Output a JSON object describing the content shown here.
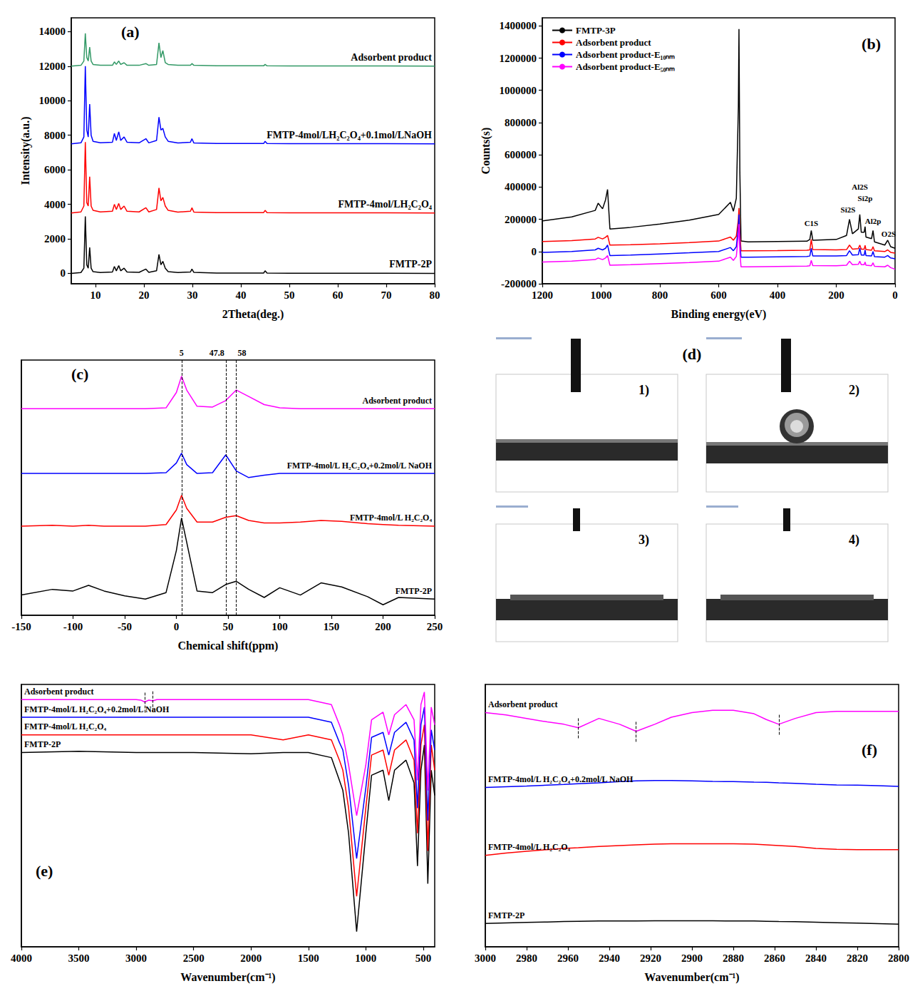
{
  "chart_data": [
    {
      "type": "line",
      "title": "(a)",
      "xlabel": "2Theta(deg.)",
      "ylabel": "Intensity(a.u.)",
      "xlim": [
        5,
        80
      ],
      "xticks": [
        10,
        20,
        30,
        40,
        50,
        60,
        70,
        80
      ],
      "ylim": [
        -600,
        14800
      ],
      "yticks": [
        0,
        2000,
        4000,
        6000,
        8000,
        10000,
        12000,
        14000
      ],
      "x": [
        5,
        7,
        7.6,
        7.9,
        8.2,
        8.5,
        8.8,
        9.1,
        9.5,
        11,
        13.5,
        13.9,
        14.3,
        14.8,
        15.2,
        15.9,
        16.5,
        19,
        20.4,
        21,
        22.6,
        23.1,
        23.5,
        23.9,
        24.4,
        25,
        27,
        29.6,
        29.9,
        30.3,
        35,
        40,
        44.7,
        45,
        45.4,
        50,
        60,
        70,
        80
      ],
      "series": [
        {
          "name": "FMTP-2P",
          "color": "#000000",
          "values": [
            0,
            50,
            300,
            3300,
            500,
            300,
            1500,
            300,
            100,
            50,
            80,
            400,
            150,
            450,
            150,
            300,
            80,
            60,
            250,
            60,
            150,
            1100,
            500,
            700,
            300,
            100,
            50,
            80,
            250,
            60,
            20,
            20,
            20,
            150,
            20,
            10,
            10,
            10,
            0
          ]
        },
        {
          "name": "FMTP-4mol/LH₂C₂O₄",
          "color": "#ff0000",
          "values": [
            3500,
            3560,
            3900,
            7600,
            4100,
            3900,
            5600,
            3900,
            3650,
            3560,
            3600,
            4000,
            3700,
            4050,
            3700,
            3900,
            3600,
            3560,
            3800,
            3560,
            3700,
            4950,
            4200,
            4400,
            3900,
            3650,
            3550,
            3600,
            3800,
            3550,
            3520,
            3520,
            3520,
            3650,
            3520,
            3510,
            3510,
            3510,
            3500
          ]
        },
        {
          "name": "FMTP-4mol/LH₂C₂O₄+0.1mol/LNaOH",
          "color": "#0000ff",
          "values": [
            7500,
            7560,
            7900,
            12000,
            8300,
            7900,
            9800,
            8000,
            7650,
            7560,
            7600,
            8100,
            7700,
            8200,
            7700,
            7900,
            7600,
            7560,
            7800,
            7560,
            7700,
            9050,
            8300,
            8400,
            7900,
            7650,
            7550,
            7600,
            7800,
            7550,
            7520,
            7520,
            7520,
            7650,
            7520,
            7510,
            7510,
            7510,
            7500
          ]
        },
        {
          "name": "Adsorbent product",
          "color": "#339966",
          "values": [
            12000,
            12050,
            12300,
            13900,
            12500,
            12300,
            13100,
            12300,
            12100,
            12050,
            12050,
            12250,
            12100,
            12300,
            12100,
            12200,
            12050,
            12050,
            12150,
            12050,
            12100,
            13350,
            12500,
            12900,
            12200,
            12100,
            12050,
            12050,
            12150,
            12050,
            12020,
            12020,
            12020,
            12100,
            12020,
            12010,
            12010,
            12010,
            12000
          ]
        }
      ]
    },
    {
      "type": "line",
      "title": "(b)",
      "xlabel": "Binding energy(eV)",
      "ylabel": "Counts(s)",
      "xlim": [
        1200,
        0
      ],
      "xticks": [
        1200,
        1000,
        800,
        600,
        400,
        200,
        0
      ],
      "ylim": [
        -200000,
        1450000
      ],
      "yticks": [
        -200000,
        0,
        200000,
        400000,
        600000,
        800000,
        1000000,
        1200000,
        1400000
      ],
      "legend": "upper left",
      "x": [
        1200,
        1100,
        1020,
        1010,
        995,
        985,
        978,
        970,
        900,
        800,
        700,
        600,
        560,
        550,
        540,
        533,
        531,
        528,
        524,
        500,
        400,
        300,
        290,
        285,
        280,
        200,
        165,
        155,
        145,
        125,
        120,
        115,
        105,
        102,
        99,
        80,
        75,
        70,
        35,
        25,
        15,
        0
      ],
      "series": [
        {
          "name": "FMTP-3P",
          "color": "#000000",
          "values": [
            190000,
            215000,
            255000,
            300000,
            265000,
            320000,
            385000,
            140000,
            150000,
            170000,
            195000,
            230000,
            305000,
            250000,
            330000,
            900000,
            1380000,
            500000,
            65000,
            60000,
            62000,
            64000,
            75000,
            130000,
            70000,
            75000,
            100000,
            200000,
            110000,
            140000,
            230000,
            120000,
            120000,
            155000,
            90000,
            80000,
            130000,
            60000,
            40000,
            70000,
            30000,
            20000
          ]
        },
        {
          "name": "Adsorbent product",
          "color": "#ff0000",
          "values": [
            62000,
            68000,
            78000,
            88000,
            78000,
            88000,
            100000,
            40000,
            42000,
            48000,
            55000,
            65000,
            90000,
            70000,
            95000,
            200000,
            270000,
            120000,
            5000,
            5000,
            6000,
            8000,
            10000,
            75000,
            12000,
            10000,
            12000,
            40000,
            15000,
            18000,
            40000,
            15000,
            15000,
            38000,
            12000,
            8000,
            30000,
            5000,
            0,
            10000,
            -5000,
            -10000
          ]
        },
        {
          "name": "Adsorbent product-E₁₀ₙₘ",
          "color": "#0000ff",
          "values": [
            -5000,
            0,
            10000,
            20000,
            10000,
            20000,
            40000,
            -25000,
            -22000,
            -15000,
            -8000,
            0,
            25000,
            5000,
            30000,
            160000,
            230000,
            60000,
            -35000,
            -35000,
            -33000,
            -31000,
            -28000,
            20000,
            -27000,
            -28000,
            -25000,
            5000,
            -22000,
            -20000,
            20000,
            -22000,
            -22000,
            10000,
            -25000,
            -28000,
            0,
            -32000,
            -35000,
            -25000,
            -40000,
            -45000
          ]
        },
        {
          "name": "Adsorbent product-E₅₀ₙₘ",
          "color": "#ff00ff",
          "values": [
            -65000,
            -60000,
            -50000,
            -40000,
            -50000,
            -40000,
            -25000,
            -85000,
            -82000,
            -75000,
            -68000,
            -60000,
            -35000,
            -55000,
            -30000,
            100000,
            170000,
            0,
            -95000,
            -95000,
            -93000,
            -91000,
            -88000,
            -55000,
            -87000,
            -88000,
            -85000,
            -60000,
            -82000,
            -80000,
            -60000,
            -82000,
            -82000,
            -65000,
            -85000,
            -88000,
            -70000,
            -92000,
            -95000,
            -85000,
            -100000,
            -110000
          ]
        }
      ],
      "annotations": [
        {
          "text": "C1S",
          "x": 285,
          "y": 175000
        },
        {
          "text": "Si2S",
          "x": 160,
          "y": 260000
        },
        {
          "text": "Al2S",
          "x": 120,
          "y": 400000
        },
        {
          "text": "Si2p",
          "x": 102,
          "y": 330000
        },
        {
          "text": "Al2p",
          "x": 75,
          "y": 190000
        },
        {
          "text": "O2S",
          "x": 22,
          "y": 110000
        }
      ]
    },
    {
      "type": "line",
      "title": "(c)",
      "xlabel": "Chemical shift(ppm)",
      "xlim": [
        -150,
        250
      ],
      "xticks": [
        -150,
        -100,
        -50,
        0,
        50,
        100,
        150,
        200,
        250
      ],
      "ylim": [
        -20,
        295
      ],
      "tick_labels": "x",
      "x": [
        -150,
        -120,
        -100,
        -85,
        -70,
        -50,
        -30,
        -10,
        0,
        5,
        10,
        20,
        35,
        47.8,
        58,
        70,
        85,
        100,
        120,
        140,
        160,
        185,
        200,
        215,
        250
      ],
      "series": [
        {
          "name": "FMTP-2P",
          "color": "#000000",
          "values": [
            5,
            12,
            10,
            17,
            10,
            4,
            0,
            8,
            60,
            100,
            70,
            10,
            8,
            18,
            22,
            12,
            2,
            14,
            5,
            20,
            15,
            3,
            -7,
            2,
            0
          ]
        },
        {
          "name": "FMTP-4mol/L H₂C₂O₄",
          "color": "#ff0000",
          "values": [
            90,
            91,
            90,
            91,
            90,
            90,
            90,
            92,
            110,
            128,
            112,
            95,
            95,
            101,
            103,
            97,
            94,
            94,
            95,
            97,
            96,
            93,
            92,
            91,
            90
          ]
        },
        {
          "name": "FMTP-4mol/L H₂C₂O₄+0.2mol/L NaOH",
          "color": "#0000ff",
          "values": [
            155,
            155,
            155,
            155,
            155,
            155,
            155,
            156,
            168,
            180,
            166,
            155,
            156,
            178,
            158,
            150,
            153,
            155,
            155,
            155,
            155,
            155,
            155,
            155,
            155
          ]
        },
        {
          "name": "Adsorbent product",
          "color": "#ff00ff",
          "values": [
            235,
            235,
            235,
            235,
            235,
            235,
            235,
            236,
            255,
            275,
            258,
            238,
            237,
            245,
            258,
            250,
            240,
            236,
            235,
            235,
            235,
            235,
            235,
            235,
            235
          ]
        }
      ],
      "annotations": [
        {
          "text": "5",
          "x": 5
        },
        {
          "text": "47.8",
          "x": 47.8
        },
        {
          "text": "58",
          "x": 58
        }
      ]
    },
    {
      "type": "image",
      "title": "(d)",
      "labels": [
        "1)",
        "2)",
        "3)",
        "4)"
      ]
    },
    {
      "type": "line",
      "title": "(e)",
      "xlabel": "Wavenumber(cm⁻¹)",
      "xlim": [
        4000,
        400
      ],
      "xticks": [
        4000,
        3500,
        3000,
        2500,
        2000,
        1500,
        1000,
        500
      ],
      "ylim": [
        0,
        104
      ],
      "tick_labels": "x",
      "x": [
        4000,
        3500,
        3000,
        2960,
        2925,
        2890,
        2855,
        2820,
        2500,
        2000,
        1720,
        1500,
        1300,
        1230,
        1200,
        1150,
        1080,
        1000,
        950,
        850,
        800,
        750,
        650,
        580,
        550,
        520,
        490,
        460,
        430,
        400
      ],
      "series": [
        {
          "name": "FMTP-2P",
          "color": "#000000",
          "values": [
            77,
            77.5,
            77,
            77,
            77,
            77,
            77,
            77,
            77,
            76.5,
            77,
            77,
            75,
            66,
            62,
            45,
            6,
            45,
            68,
            70,
            58,
            70,
            74,
            65,
            32,
            70,
            80,
            25,
            70,
            60
          ]
        },
        {
          "name": "FMTP-4mol/L H₂C₂O₄",
          "color": "#ff0000",
          "values": [
            84,
            84,
            84,
            84,
            84,
            84,
            84,
            84,
            84,
            84,
            82,
            84,
            82,
            74,
            70,
            55,
            20,
            55,
            76,
            78,
            68,
            78,
            82,
            74,
            45,
            80,
            88,
            38,
            80,
            70
          ]
        },
        {
          "name": "FMTP-4mol/L H₂C₂O₄+0.2mol/L NaOH",
          "color": "#0000ff",
          "values": [
            91,
            91,
            91,
            91,
            91,
            91,
            91,
            91,
            91,
            91,
            91,
            91,
            89,
            81,
            78,
            64,
            35,
            63,
            83,
            85,
            76,
            85,
            89,
            82,
            55,
            88,
            95,
            50,
            86,
            78
          ]
        },
        {
          "name": "Adsorbent product",
          "color": "#ff00ff",
          "values": [
            98,
            98,
            98,
            97.8,
            97,
            97.8,
            97.5,
            98,
            98,
            98,
            98,
            98,
            96,
            88,
            84,
            72,
            52,
            72,
            90,
            93,
            84,
            92,
            96,
            90,
            66,
            96,
            101,
            62,
            95,
            88
          ]
        }
      ],
      "annotations": [
        {
          "x": 2925
        },
        {
          "x": 2855
        }
      ]
    },
    {
      "type": "line",
      "title": "(f)",
      "xlabel": "Wavenumber(cm⁻¹)",
      "xlim": [
        3000,
        2800
      ],
      "xticks": [
        3000,
        2980,
        2960,
        2940,
        2920,
        2900,
        2880,
        2860,
        2840,
        2820,
        2800
      ],
      "ylim": [
        0,
        112
      ],
      "tick_labels": "x",
      "x": [
        3000,
        2990,
        2980,
        2970,
        2962,
        2955,
        2945,
        2935,
        2927,
        2918,
        2910,
        2900,
        2890,
        2880,
        2870,
        2864,
        2858,
        2850,
        2840,
        2830,
        2820,
        2810,
        2800
      ],
      "series": [
        {
          "name": "FMTP-2P",
          "color": "#000000",
          "values": [
            10,
            10.2,
            10.4,
            10.6,
            10.8,
            10.9,
            11,
            11,
            11,
            11.1,
            11.1,
            11.1,
            11.1,
            11,
            11,
            10.9,
            10.8,
            10.7,
            10.5,
            10.3,
            10.1,
            9.9,
            9.7
          ]
        },
        {
          "name": "FMTP-4mol/L H₂C₂O₄",
          "color": "#ff0000",
          "values": [
            39,
            40,
            40.8,
            41.5,
            42,
            42.3,
            42.8,
            43.2,
            43.5,
            43.8,
            44,
            44,
            44,
            44,
            43.8,
            43.5,
            43.2,
            42.8,
            42,
            41.6,
            41.5,
            41.5,
            41.5
          ]
        },
        {
          "name": "FMTP-4mol/L H₂C₂O₄+0.2mol/L NaOH",
          "color": "#0000ff",
          "values": [
            68,
            68.3,
            68.6,
            69,
            69.3,
            69.6,
            70,
            70.5,
            70.8,
            71,
            71,
            70.8,
            70.6,
            70.5,
            70.3,
            70.2,
            70,
            69.8,
            69.4,
            69.1,
            69,
            68.8,
            68.5
          ]
        },
        {
          "name": "Adsorbent product",
          "color": "#ff00ff",
          "values": [
            100,
            99,
            97.5,
            96,
            95,
            93.5,
            97.5,
            95,
            92,
            95,
            98,
            100,
            101,
            101,
            99.5,
            97,
            95,
            97.5,
            100,
            100.5,
            100.5,
            100.5,
            100.5
          ]
        }
      ],
      "annotations": [
        {
          "x": 2955
        },
        {
          "x": 2927
        },
        {
          "x": 2858
        }
      ]
    }
  ]
}
